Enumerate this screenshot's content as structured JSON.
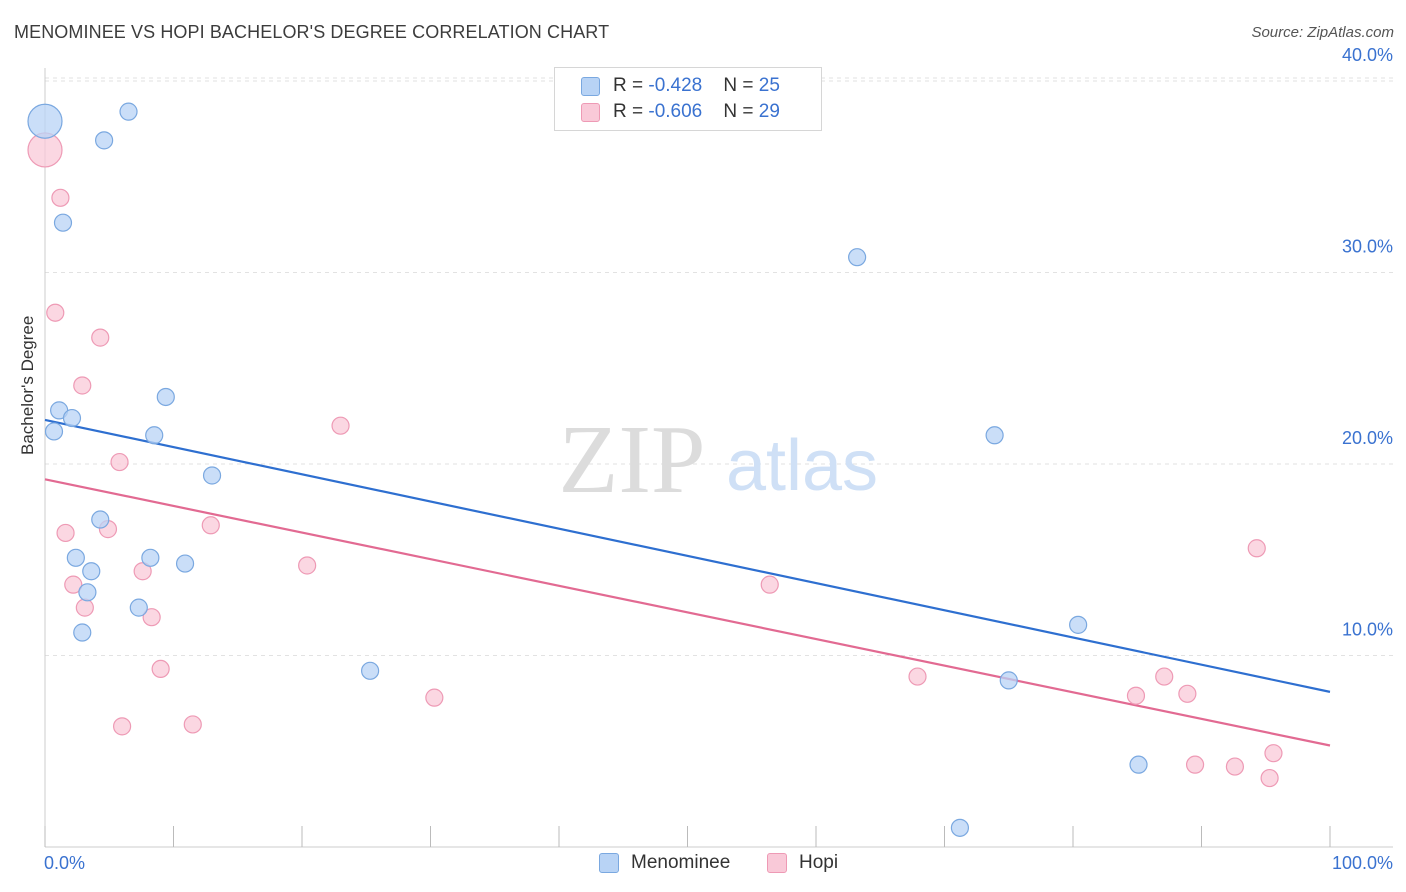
{
  "header": {
    "title": "MENOMINEE VS HOPI BACHELOR'S DEGREE CORRELATION CHART",
    "source": "Source: ZipAtlas.com"
  },
  "watermark": {
    "zip": "ZIP",
    "atlas": "atlas"
  },
  "colors": {
    "menominee_fill": "#b8d3f5",
    "menominee_stroke": "#7aa8e0",
    "menominee_line": "#2e6fd0",
    "hopi_fill": "#f9c9d8",
    "hopi_stroke": "#ee9ab5",
    "hopi_line": "#e26a92",
    "tick_text": "#3a72d0",
    "grid": "#e2e2e2"
  },
  "legend": {
    "menominee": {
      "r_label": "R = ",
      "r_value": "-0.428",
      "n_label": "N = ",
      "n_value": "25"
    },
    "hopi": {
      "r_label": "R = ",
      "r_value": "-0.606",
      "n_label": "N = ",
      "n_value": "29"
    }
  },
  "bottom_legend": {
    "menominee": "Menominee",
    "hopi": "Hopi"
  },
  "chart_data": {
    "type": "scatter",
    "title": "MENOMINEE VS HOPI BACHELOR'S DEGREE CORRELATION CHART",
    "xlabel": "",
    "ylabel": "Bachelor's Degree",
    "xlim": [
      0,
      100
    ],
    "ylim": [
      0,
      42
    ],
    "x_ticks": [
      0,
      10,
      20,
      30,
      40,
      50,
      60,
      70,
      80,
      90,
      100
    ],
    "x_tick_labels": {
      "start": "0.0%",
      "end": "100.0%"
    },
    "y_ticks": [
      {
        "value": 10,
        "label": "10.0%"
      },
      {
        "value": 20,
        "label": "20.0%"
      },
      {
        "value": 30,
        "label": "30.0%"
      },
      {
        "value": 40,
        "label": "40.0%"
      }
    ],
    "series": [
      {
        "name": "Menominee",
        "r": -0.428,
        "n": 25,
        "trend": {
          "x": [
            0,
            100
          ],
          "y": [
            22.3,
            8.1
          ]
        },
        "points": [
          {
            "x": 0.0,
            "y": 37.9,
            "big": true
          },
          {
            "x": 6.5,
            "y": 38.4
          },
          {
            "x": 4.6,
            "y": 36.9
          },
          {
            "x": 1.4,
            "y": 32.6
          },
          {
            "x": 63.2,
            "y": 30.8
          },
          {
            "x": 9.4,
            "y": 23.5
          },
          {
            "x": 1.1,
            "y": 22.8
          },
          {
            "x": 2.1,
            "y": 22.4
          },
          {
            "x": 0.7,
            "y": 21.7
          },
          {
            "x": 8.5,
            "y": 21.5
          },
          {
            "x": 73.9,
            "y": 21.5
          },
          {
            "x": 13.0,
            "y": 19.4
          },
          {
            "x": 4.3,
            "y": 17.1
          },
          {
            "x": 2.4,
            "y": 15.1
          },
          {
            "x": 8.2,
            "y": 15.1
          },
          {
            "x": 3.6,
            "y": 14.4
          },
          {
            "x": 10.9,
            "y": 14.8
          },
          {
            "x": 3.3,
            "y": 13.3
          },
          {
            "x": 7.3,
            "y": 12.5
          },
          {
            "x": 2.9,
            "y": 11.2
          },
          {
            "x": 80.4,
            "y": 11.6
          },
          {
            "x": 25.3,
            "y": 9.2
          },
          {
            "x": 75.0,
            "y": 8.7
          },
          {
            "x": 85.1,
            "y": 4.3
          },
          {
            "x": 71.2,
            "y": 1.0
          }
        ]
      },
      {
        "name": "Hopi",
        "r": -0.606,
        "n": 29,
        "trend": {
          "x": [
            0,
            100
          ],
          "y": [
            19.2,
            5.3
          ]
        },
        "points": [
          {
            "x": 0.0,
            "y": 36.4,
            "big": true
          },
          {
            "x": 1.2,
            "y": 33.9
          },
          {
            "x": 0.8,
            "y": 27.9
          },
          {
            "x": 4.3,
            "y": 26.6
          },
          {
            "x": 2.9,
            "y": 24.1
          },
          {
            "x": 23.0,
            "y": 22.0
          },
          {
            "x": 5.8,
            "y": 20.1
          },
          {
            "x": 1.6,
            "y": 16.4
          },
          {
            "x": 4.9,
            "y": 16.6
          },
          {
            "x": 12.9,
            "y": 16.8
          },
          {
            "x": 20.4,
            "y": 14.7
          },
          {
            "x": 7.6,
            "y": 14.4
          },
          {
            "x": 2.2,
            "y": 13.7
          },
          {
            "x": 56.4,
            "y": 13.7
          },
          {
            "x": 3.1,
            "y": 12.5
          },
          {
            "x": 8.3,
            "y": 12.0
          },
          {
            "x": 94.3,
            "y": 15.6
          },
          {
            "x": 9.0,
            "y": 9.3
          },
          {
            "x": 67.9,
            "y": 8.9
          },
          {
            "x": 87.1,
            "y": 8.9
          },
          {
            "x": 30.3,
            "y": 7.8
          },
          {
            "x": 84.9,
            "y": 7.9
          },
          {
            "x": 88.9,
            "y": 8.0
          },
          {
            "x": 6.0,
            "y": 6.3
          },
          {
            "x": 11.5,
            "y": 6.4
          },
          {
            "x": 95.6,
            "y": 4.9
          },
          {
            "x": 89.5,
            "y": 4.3
          },
          {
            "x": 92.6,
            "y": 4.2
          },
          {
            "x": 95.3,
            "y": 3.6
          }
        ]
      }
    ]
  }
}
